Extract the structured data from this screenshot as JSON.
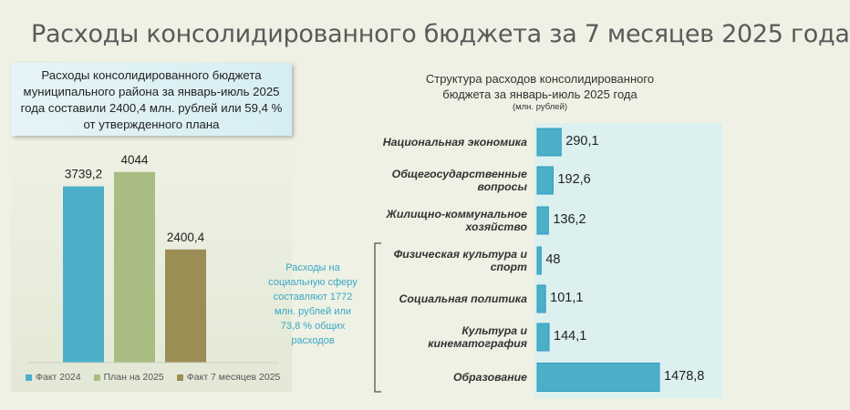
{
  "title": "Расходы консолидированного бюджета за 7 месяцев 2025 года",
  "summary_box": {
    "lines": [
      "Расходы консолидированного бюджета",
      "муниципального района за январь-июль 2025",
      "года составили 2400,4 млн. рублей или 59,4 %",
      "от утвержденного плана"
    ]
  },
  "side_note": {
    "lines": [
      "Расходы на",
      "социальную сферу",
      "составляют 1772",
      "млн. рублей или",
      "73,8 % общих",
      "расходов"
    ]
  },
  "chart_data": [
    {
      "type": "bar",
      "categories": [
        "Факт 2024",
        "План на 2025",
        "Факт 7 месяцев 2025"
      ],
      "values": [
        3739.2,
        4044,
        2400.4
      ],
      "value_labels": [
        "3739,2",
        "4044",
        "2400,4"
      ],
      "colors": [
        "#4bafc8",
        "#a9bd82",
        "#9a8e55"
      ],
      "ylim": [
        0,
        4400
      ],
      "legend": "bottom"
    },
    {
      "type": "bar",
      "orientation": "horizontal",
      "title_lines": [
        "Структура расходов консолидированного",
        "бюджета за январь-июль 2025 года"
      ],
      "unit": "(млн. рублей)",
      "categories": [
        [
          "Национальная экономика"
        ],
        [
          "Общегосударственные",
          "вопросы"
        ],
        [
          "Жилищно-коммунальное",
          "хозяйство"
        ],
        [
          "Физическая культура и",
          "спорт"
        ],
        [
          "Социальная политика"
        ],
        [
          "Культура и",
          "кинематография"
        ],
        [
          "Образование"
        ]
      ],
      "values": [
        290.1,
        192.6,
        136.2,
        48,
        101.1,
        144.1,
        1478.8
      ],
      "value_labels": [
        "290,1",
        "192,6",
        "136,2",
        "48",
        "101,1",
        "144,1",
        "1478,8"
      ],
      "color": "#4bafc8",
      "xlim": [
        0,
        2000
      ]
    }
  ]
}
